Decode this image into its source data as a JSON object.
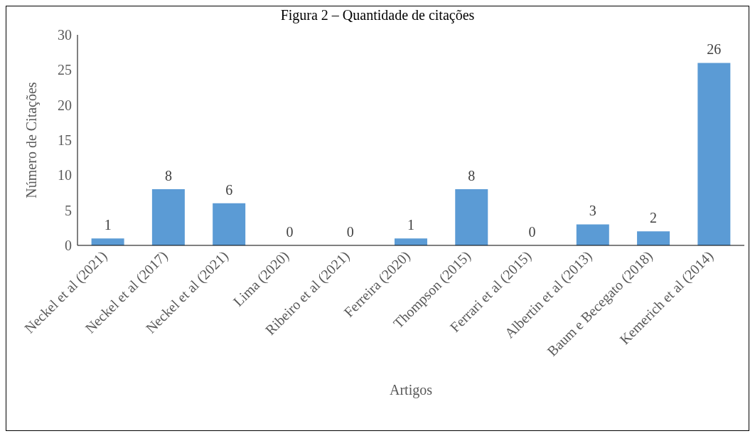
{
  "chart_data": {
    "type": "bar",
    "title": "Figura 2 – Quantidade de citações",
    "xlabel": "Artigos",
    "ylabel": "Número de Citações",
    "categories": [
      "Neckel et al (2021)",
      "Neckel et al (2017)",
      "Neckel et al (2021)",
      "Lima (2020)",
      "Ribeiro et al (2021)",
      "Ferreira (2020)",
      "Thompson (2015)",
      "Ferrari et al (2015)",
      "Albertin et al (2013)",
      "Baum e Becegato (2018)",
      "Kemerich et al (2014)"
    ],
    "values": [
      1,
      8,
      6,
      0,
      0,
      1,
      8,
      0,
      3,
      2,
      26
    ],
    "color": "#5b9bd5",
    "ylim": [
      0,
      30
    ],
    "yticks": [
      0,
      5,
      10,
      15,
      20,
      25,
      30
    ],
    "grid": false,
    "legend": false,
    "data_labels": true
  }
}
